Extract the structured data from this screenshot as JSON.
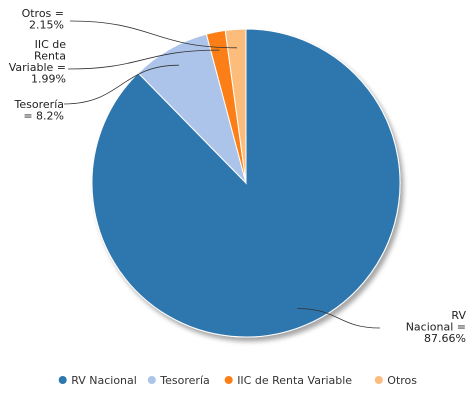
{
  "chart_data": {
    "type": "pie",
    "title": "",
    "slices": [
      {
        "name": "RV Nacional",
        "value": 87.66,
        "color": "#2e77ae",
        "label_lines": [
          "RV",
          "Nacional =",
          "87.66%"
        ]
      },
      {
        "name": "Tesorería",
        "value": 8.2,
        "color": "#adc4ea",
        "label_lines": [
          "Tesorería",
          "= 8.2%"
        ]
      },
      {
        "name": "IIC de Renta Variable",
        "value": 1.99,
        "color": "#fb7f14",
        "label_lines": [
          "IIC de",
          "Renta",
          "Variable =",
          "1.99%"
        ]
      },
      {
        "name": "Otros",
        "value": 2.15,
        "color": "#fcbc7c",
        "label_lines": [
          "Otros =",
          "2.15%"
        ]
      }
    ],
    "legend_position": "bottom"
  }
}
